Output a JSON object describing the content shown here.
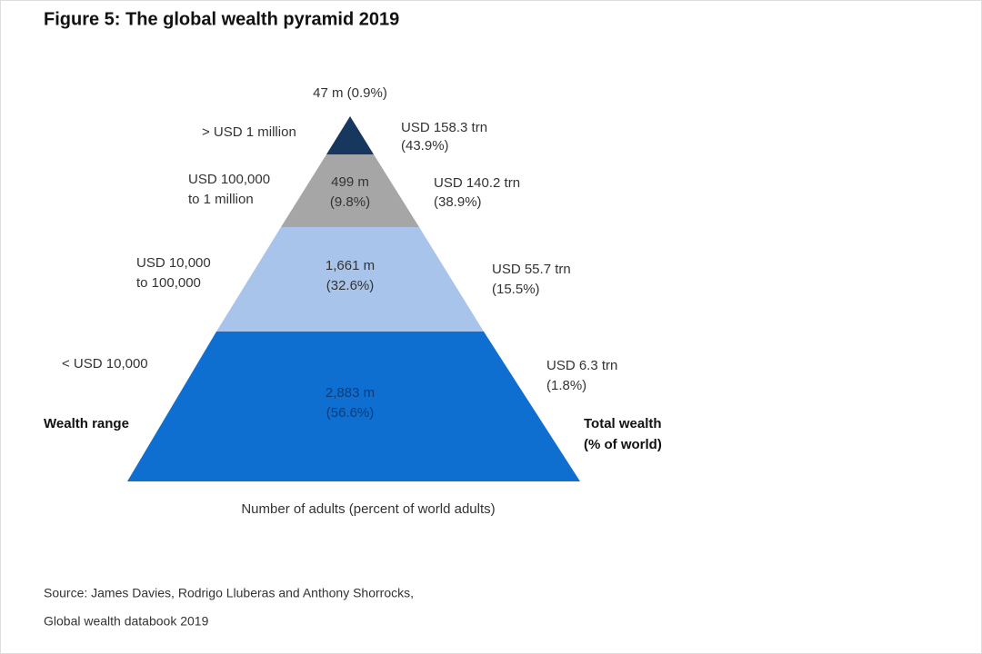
{
  "title": "Figure 5: The global wealth pyramid 2019",
  "tiers": [
    {
      "adults": [
        "47 m (0.9%)"
      ],
      "range": [
        "> USD 1 million"
      ],
      "wealth": [
        "USD 158.3 trn",
        "(43.9%)"
      ]
    },
    {
      "adults": [
        "499 m",
        "(9.8%)"
      ],
      "range": [
        "USD 100,000",
        "to 1 million"
      ],
      "wealth": [
        "USD 140.2 trn",
        "(38.9%)"
      ]
    },
    {
      "adults": [
        "1,661 m",
        "(32.6%)"
      ],
      "range": [
        "USD 10,000",
        "to 100,000"
      ],
      "wealth": [
        "USD 55.7 trn",
        "(15.5%)"
      ]
    },
    {
      "adults": [
        "2,883 m",
        "(56.6%)"
      ],
      "range": [
        "< USD 10,000"
      ],
      "wealth": [
        "USD 6.3 trn",
        "(1.8%)"
      ]
    }
  ],
  "left_label": "Wealth range",
  "right_label": [
    "Total wealth",
    "(% of world)"
  ],
  "bottom_label": "Number of adults (percent of world adults)",
  "source": [
    "Source: James Davies, Rodrigo Lluberas and Anthony Shorrocks,",
    "Global wealth databook 2019"
  ]
}
